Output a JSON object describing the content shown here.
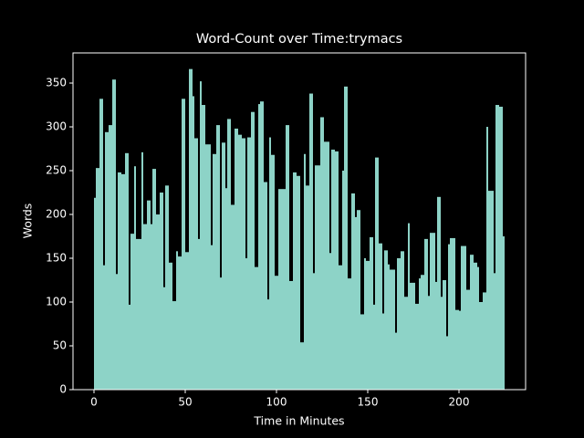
{
  "chart_data": {
    "type": "histogram",
    "title": "Word-Count over Time:trymacs",
    "x_label": "Time in Minutes",
    "y_label": "Words",
    "color": "#8dd3c7",
    "bins": [
      0,
      1,
      3,
      5,
      6,
      8,
      10,
      12,
      13,
      15,
      17,
      19,
      20,
      22,
      23,
      26,
      27,
      29,
      31,
      32,
      34,
      36,
      38,
      39,
      41,
      43,
      45,
      46,
      48,
      50,
      52,
      54,
      55,
      57,
      58,
      59,
      61,
      64,
      65,
      67,
      69,
      70,
      72,
      73,
      75,
      77,
      79,
      81,
      83,
      84,
      86,
      88,
      90,
      91,
      93,
      95,
      96,
      97,
      99,
      101,
      105,
      107,
      109,
      111,
      113,
      115,
      116,
      118,
      120,
      121,
      124,
      126,
      129,
      130,
      132,
      134,
      136,
      137,
      139,
      141,
      143,
      144,
      146,
      148,
      149,
      151,
      153,
      154,
      156,
      158,
      159,
      161,
      162,
      165,
      166,
      168,
      170,
      172,
      173,
      176,
      178,
      179,
      181,
      183,
      184,
      187,
      188,
      190,
      191,
      193,
      194,
      195,
      198,
      200,
      201,
      204,
      206,
      208,
      210,
      211,
      213,
      215,
      216,
      219,
      220,
      222,
      224,
      225
    ],
    "values": [
      219,
      253,
      332,
      142,
      294,
      302,
      354,
      132,
      248,
      246,
      270,
      97,
      178,
      255,
      172,
      271,
      189,
      216,
      189,
      252,
      200,
      225,
      117,
      233,
      145,
      101,
      158,
      152,
      332,
      157,
      366,
      335,
      287,
      172,
      352,
      325,
      280,
      165,
      269,
      302,
      128,
      282,
      230,
      309,
      211,
      298,
      291,
      287,
      150,
      288,
      317,
      140,
      326,
      329,
      237,
      103,
      288,
      268,
      130,
      229,
      302,
      124,
      248,
      244,
      54,
      269,
      233,
      338,
      133,
      256,
      311,
      283,
      156,
      274,
      272,
      142,
      250,
      346,
      127,
      224,
      197,
      205,
      86,
      150,
      147,
      174,
      97,
      265,
      167,
      87,
      159,
      143,
      137,
      65,
      150,
      158,
      106,
      190,
      122,
      98,
      127,
      131,
      172,
      107,
      179,
      123,
      220,
      106,
      125,
      61,
      166,
      173,
      91,
      90,
      164,
      114,
      154,
      145,
      140,
      100,
      111,
      300,
      227,
      133,
      325,
      323,
      175
    ],
    "xlim": [
      -11.5,
      236.5
    ],
    "xticks": [
      0,
      50,
      100,
      150,
      200
    ],
    "ylim": [
      0,
      384.4
    ],
    "yticks": [
      0,
      50,
      100,
      150,
      200,
      250,
      300,
      350
    ]
  }
}
